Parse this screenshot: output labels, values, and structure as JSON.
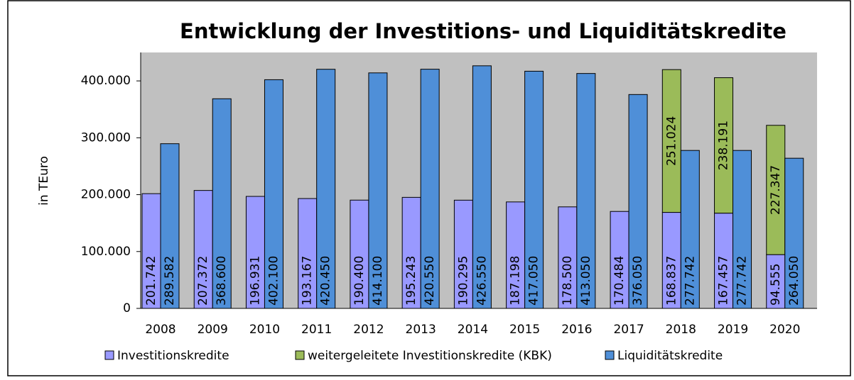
{
  "chart_data": {
    "type": "bar",
    "title": "Entwicklung der Investitions- und Liquiditätskredite",
    "y_label": "in TEuro",
    "categories": [
      "2008",
      "2009",
      "2010",
      "2011",
      "2012",
      "2013",
      "2014",
      "2015",
      "2016",
      "2017",
      "2018",
      "2019",
      "2020"
    ],
    "series": [
      {
        "name": "Investitionskredite",
        "color": "#9999ff",
        "stack": "a",
        "values": [
          201742,
          207372,
          196931,
          193167,
          190400,
          195243,
          190295,
          187198,
          178500,
          170484,
          168837,
          167457,
          94555
        ],
        "value_labels": [
          "201.742",
          "207.372",
          "196.931",
          "193.167",
          "190.400",
          "195.243",
          "190.295",
          "187.198",
          "178.500",
          "170.484",
          "168.837",
          "167.457",
          "94.555"
        ]
      },
      {
        "name": "weitergeleitete Investitionskredite (KBK)",
        "color": "#9bbb59",
        "stack": "a",
        "values": [
          null,
          null,
          null,
          null,
          null,
          null,
          null,
          null,
          null,
          null,
          251024,
          238191,
          227347
        ],
        "value_labels": [
          null,
          null,
          null,
          null,
          null,
          null,
          null,
          null,
          null,
          null,
          "251.024",
          "238.191",
          "227.347"
        ]
      },
      {
        "name": "Liquiditätskredite",
        "color": "#4f8fd8",
        "stack": "b",
        "values": [
          289582,
          368600,
          402100,
          420450,
          414100,
          420550,
          426550,
          417050,
          413050,
          376050,
          277742,
          277742,
          264050
        ],
        "value_labels": [
          "289.582",
          "368.600",
          "402.100",
          "420.450",
          "414.100",
          "420.550",
          "426.550",
          "417.050",
          "413.050",
          "376.050",
          "277.742",
          "277.742",
          "264.050"
        ]
      }
    ],
    "ylim": [
      0,
      450000
    ],
    "yticks": [
      0,
      {
        "value": 100000,
        "label": "100.000"
      },
      {
        "value": 200000,
        "label": "200.000"
      },
      {
        "value": 300000,
        "label": "300.000"
      },
      {
        "value": 400000,
        "label": "400.000"
      }
    ],
    "grid": false,
    "legend": "bottom"
  }
}
